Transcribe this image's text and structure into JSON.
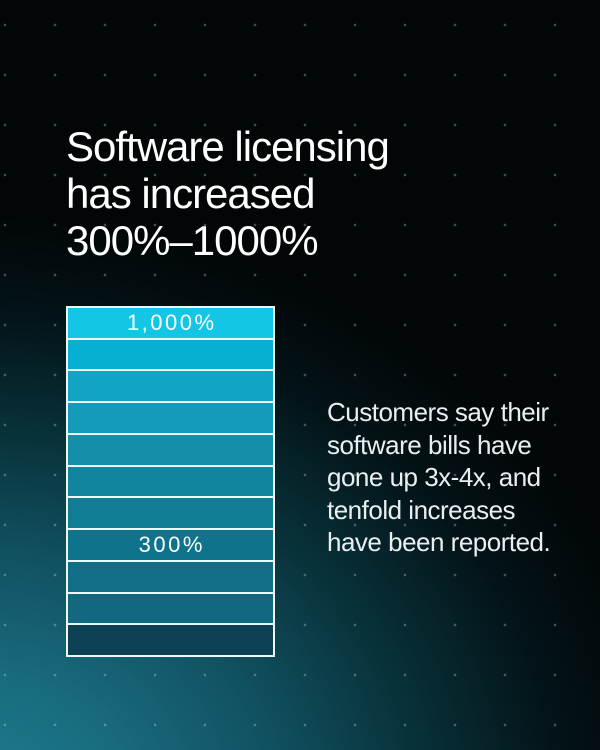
{
  "poster": {
    "headline": {
      "lines": [
        "Software licensing",
        "has increased",
        "300%–1000%"
      ]
    },
    "body_text": {
      "text": "Customers say their software bills have gone up 3x-4x, and tenfold increases have been reported.",
      "lines": [
        "Customers say their",
        "software bills have",
        "gone up 3x-4x, and",
        "tenfold increases",
        "have been reported."
      ]
    }
  },
  "chart_data": {
    "type": "bar",
    "title": "Software licensing has increased 300%–1000%",
    "xlabel": "",
    "ylabel": "",
    "ylim": [
      0,
      1000
    ],
    "grid": false,
    "legend_position": "none",
    "labeled_values": [
      "1,000%",
      "300%"
    ],
    "segments": [
      {
        "value": 1000,
        "label": "1,000%",
        "color": "#14c6e6"
      },
      {
        "value": 900,
        "label": "",
        "color": "#07b0d2"
      },
      {
        "value": 800,
        "label": "",
        "color": "#13a4c4"
      },
      {
        "value": 700,
        "label": "",
        "color": "#149bb9"
      },
      {
        "value": 600,
        "label": "",
        "color": "#148ea9"
      },
      {
        "value": 500,
        "label": "",
        "color": "#12859e"
      },
      {
        "value": 400,
        "label": "",
        "color": "#107d95"
      },
      {
        "value": 300,
        "label": "300%",
        "color": "#0f748b"
      },
      {
        "value": 200,
        "label": "",
        "color": "#126e86"
      },
      {
        "value": 100,
        "label": "",
        "color": "#11687f"
      },
      {
        "value": 0,
        "label": "",
        "color": "#0d4156"
      }
    ]
  },
  "colors": {
    "background": "#020607",
    "glow_teal": "#1e7e91",
    "accent_cyan": "#14c6e6",
    "segment_border": "#f0f7f8",
    "headline_text": "#ffffff",
    "body_text": "#e9eff1"
  }
}
